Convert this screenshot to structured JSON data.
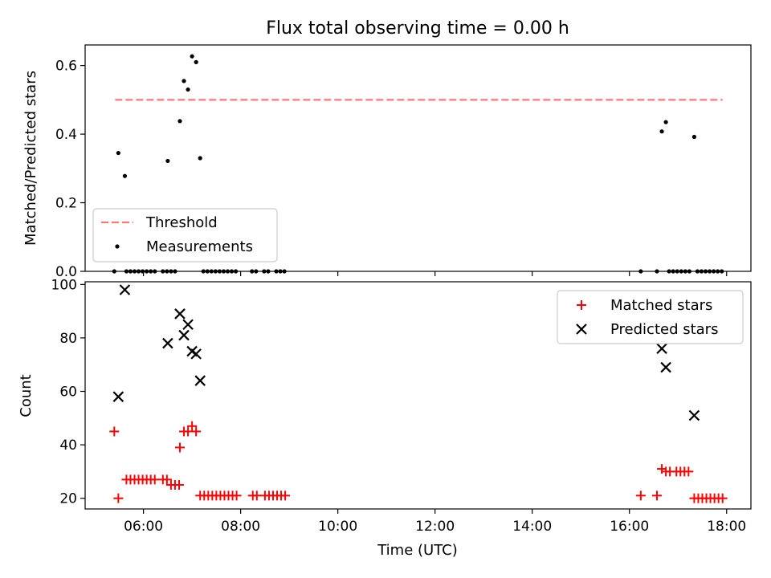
{
  "figure_title": "Flux total observing time = 0.00 h",
  "chart_data": [
    {
      "type": "scatter",
      "ylabel": "Matched/Predicted stars",
      "ylim": [
        0,
        0.66
      ],
      "xlim": [
        "04:48",
        "18:30"
      ],
      "yticks": [
        0.0,
        0.2,
        0.4,
        0.6
      ],
      "ytick_labels": [
        "0.0",
        "0.2",
        "0.4",
        "0.6"
      ],
      "xtick_labels_visible": false,
      "threshold": {
        "name": "Threshold",
        "value": 0.5,
        "x_range": [
          "05:25",
          "17:55"
        ],
        "color": "#ff7777"
      },
      "legend": {
        "placement": "lower-left",
        "entries": [
          "Threshold",
          "Measurements"
        ]
      },
      "series": [
        {
          "name": "Measurements",
          "marker": "dot",
          "color": "#000000",
          "points": [
            [
              "05:29",
              0.345
            ],
            [
              "05:37",
              0.278
            ],
            [
              "06:30",
              0.322
            ],
            [
              "06:45",
              0.438
            ],
            [
              "06:50",
              0.555
            ],
            [
              "06:55",
              0.53
            ],
            [
              "07:00",
              0.627
            ],
            [
              "07:05",
              0.61
            ],
            [
              "07:10",
              0.33
            ],
            [
              "16:40",
              0.408
            ],
            [
              "16:45",
              0.435
            ],
            [
              "17:20",
              0.392
            ],
            [
              "05:24",
              0.0
            ],
            [
              "05:39",
              0.0
            ],
            [
              "05:44",
              0.0
            ],
            [
              "05:49",
              0.0
            ],
            [
              "05:54",
              0.0
            ],
            [
              "05:59",
              0.0
            ],
            [
              "06:04",
              0.0
            ],
            [
              "06:09",
              0.0
            ],
            [
              "06:14",
              0.0
            ],
            [
              "06:24",
              0.0
            ],
            [
              "06:29",
              0.0
            ],
            [
              "06:34",
              0.0
            ],
            [
              "06:39",
              0.0
            ],
            [
              "07:14",
              0.0
            ],
            [
              "07:19",
              0.0
            ],
            [
              "07:24",
              0.0
            ],
            [
              "07:29",
              0.0
            ],
            [
              "07:34",
              0.0
            ],
            [
              "07:39",
              0.0
            ],
            [
              "07:44",
              0.0
            ],
            [
              "07:49",
              0.0
            ],
            [
              "07:54",
              0.0
            ],
            [
              "08:14",
              0.0
            ],
            [
              "08:19",
              0.0
            ],
            [
              "08:29",
              0.0
            ],
            [
              "08:34",
              0.0
            ],
            [
              "08:44",
              0.0
            ],
            [
              "08:49",
              0.0
            ],
            [
              "08:54",
              0.0
            ],
            [
              "16:14",
              0.0
            ],
            [
              "16:34",
              0.0
            ],
            [
              "16:49",
              0.0
            ],
            [
              "16:54",
              0.0
            ],
            [
              "16:59",
              0.0
            ],
            [
              "17:04",
              0.0
            ],
            [
              "17:09",
              0.0
            ],
            [
              "17:14",
              0.0
            ],
            [
              "17:24",
              0.0
            ],
            [
              "17:29",
              0.0
            ],
            [
              "17:34",
              0.0
            ],
            [
              "17:39",
              0.0
            ],
            [
              "17:44",
              0.0
            ],
            [
              "17:49",
              0.0
            ],
            [
              "17:54",
              0.0
            ]
          ]
        }
      ]
    },
    {
      "type": "scatter",
      "ylabel": "Count",
      "xlabel": "Time (UTC)",
      "ylim": [
        16,
        101
      ],
      "xlim": [
        "04:48",
        "18:30"
      ],
      "yticks": [
        20,
        40,
        60,
        80,
        100
      ],
      "ytick_labels": [
        "20",
        "40",
        "60",
        "80",
        "100"
      ],
      "xticks": [
        "06:00",
        "08:00",
        "10:00",
        "12:00",
        "14:00",
        "16:00",
        "18:00"
      ],
      "xtick_labels": [
        "06:00",
        "08:00",
        "10:00",
        "12:00",
        "14:00",
        "16:00",
        "18:00"
      ],
      "legend": {
        "placement": "top-right",
        "entries": [
          "Matched stars",
          "Predicted stars"
        ]
      },
      "series": [
        {
          "name": "Matched stars",
          "marker": "plus",
          "color": "#ff0000",
          "points": [
            [
              "05:24",
              45
            ],
            [
              "05:29",
              20
            ],
            [
              "05:39",
              27
            ],
            [
              "05:44",
              27
            ],
            [
              "05:49",
              27
            ],
            [
              "05:54",
              27
            ],
            [
              "05:59",
              27
            ],
            [
              "06:04",
              27
            ],
            [
              "06:09",
              27
            ],
            [
              "06:14",
              27
            ],
            [
              "06:24",
              27
            ],
            [
              "06:29",
              27
            ],
            [
              "06:34",
              25
            ],
            [
              "06:39",
              25
            ],
            [
              "06:44",
              25
            ],
            [
              "06:45",
              39
            ],
            [
              "06:50",
              45
            ],
            [
              "06:55",
              45
            ],
            [
              "07:00",
              47
            ],
            [
              "07:05",
              45
            ],
            [
              "07:10",
              21
            ],
            [
              "07:15",
              21
            ],
            [
              "07:20",
              21
            ],
            [
              "07:25",
              21
            ],
            [
              "07:30",
              21
            ],
            [
              "07:35",
              21
            ],
            [
              "07:40",
              21
            ],
            [
              "07:45",
              21
            ],
            [
              "07:50",
              21
            ],
            [
              "07:55",
              21
            ],
            [
              "08:15",
              21
            ],
            [
              "08:20",
              21
            ],
            [
              "08:30",
              21
            ],
            [
              "08:35",
              21
            ],
            [
              "08:40",
              21
            ],
            [
              "08:45",
              21
            ],
            [
              "08:50",
              21
            ],
            [
              "08:55",
              21
            ],
            [
              "16:14",
              21
            ],
            [
              "16:34",
              21
            ],
            [
              "16:40",
              31
            ],
            [
              "16:45",
              30
            ],
            [
              "16:50",
              30
            ],
            [
              "16:58",
              30
            ],
            [
              "17:03",
              30
            ],
            [
              "17:08",
              30
            ],
            [
              "17:13",
              30
            ],
            [
              "17:20",
              20
            ],
            [
              "17:25",
              20
            ],
            [
              "17:30",
              20
            ],
            [
              "17:35",
              20
            ],
            [
              "17:40",
              20
            ],
            [
              "17:45",
              20
            ],
            [
              "17:50",
              20
            ],
            [
              "17:55",
              20
            ]
          ]
        },
        {
          "name": "Predicted stars",
          "marker": "x",
          "color": "#000000",
          "points": [
            [
              "05:29",
              58
            ],
            [
              "05:37",
              98
            ],
            [
              "06:30",
              78
            ],
            [
              "06:45",
              89
            ],
            [
              "06:50",
              81
            ],
            [
              "06:55",
              85
            ],
            [
              "07:00",
              75
            ],
            [
              "07:05",
              74
            ],
            [
              "07:10",
              64
            ],
            [
              "16:40",
              76
            ],
            [
              "16:45",
              69
            ],
            [
              "17:20",
              51
            ]
          ]
        }
      ]
    }
  ]
}
